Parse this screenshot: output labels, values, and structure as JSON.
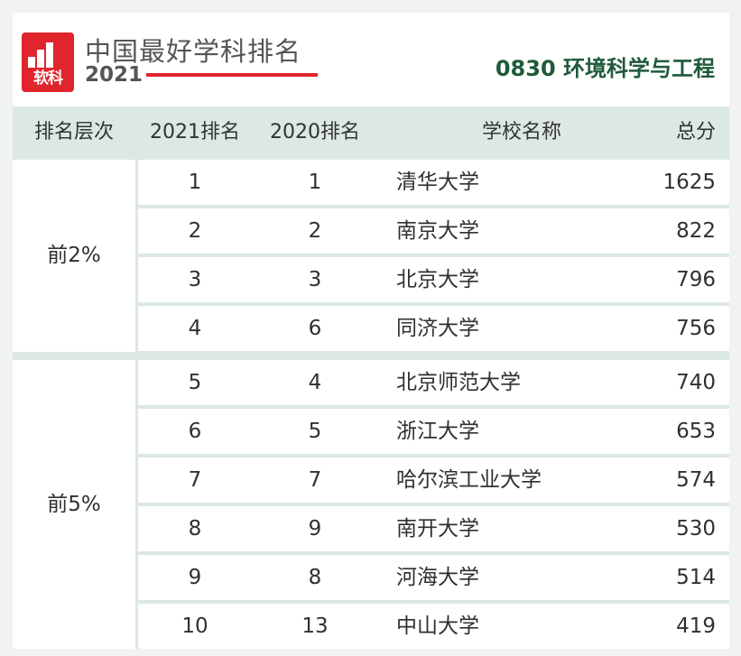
{
  "brand": {
    "logo_text": "软科",
    "title": "中国最好学科排名",
    "year": "2021",
    "colors": {
      "brand_red": "#e0252c",
      "subject_green": "#1f5a3a",
      "row_bg": "#ffffff",
      "band_bg": "#dce8e2"
    }
  },
  "subject": "0830 环境科学与工程",
  "columns": {
    "tier": "排名层次",
    "rank2021": "2021排名",
    "rank2020": "2020排名",
    "school": "学校名称",
    "score": "总分"
  },
  "tiers": [
    {
      "label": "前2%",
      "rows": [
        {
          "rank2021": "1",
          "rank2020": "1",
          "school": "清华大学",
          "score": "1625"
        },
        {
          "rank2021": "2",
          "rank2020": "2",
          "school": "南京大学",
          "score": "822"
        },
        {
          "rank2021": "3",
          "rank2020": "3",
          "school": "北京大学",
          "score": "796"
        },
        {
          "rank2021": "4",
          "rank2020": "6",
          "school": "同济大学",
          "score": "756"
        }
      ]
    },
    {
      "label": "前5%",
      "rows": [
        {
          "rank2021": "5",
          "rank2020": "4",
          "school": "北京师范大学",
          "score": "740"
        },
        {
          "rank2021": "6",
          "rank2020": "5",
          "school": "浙江大学",
          "score": "653"
        },
        {
          "rank2021": "7",
          "rank2020": "7",
          "school": "哈尔滨工业大学",
          "score": "574"
        },
        {
          "rank2021": "8",
          "rank2020": "9",
          "school": "南开大学",
          "score": "530"
        },
        {
          "rank2021": "9",
          "rank2020": "8",
          "school": "河海大学",
          "score": "514"
        },
        {
          "rank2021": "10",
          "rank2020": "13",
          "school": "中山大学",
          "score": "419"
        }
      ]
    }
  ]
}
